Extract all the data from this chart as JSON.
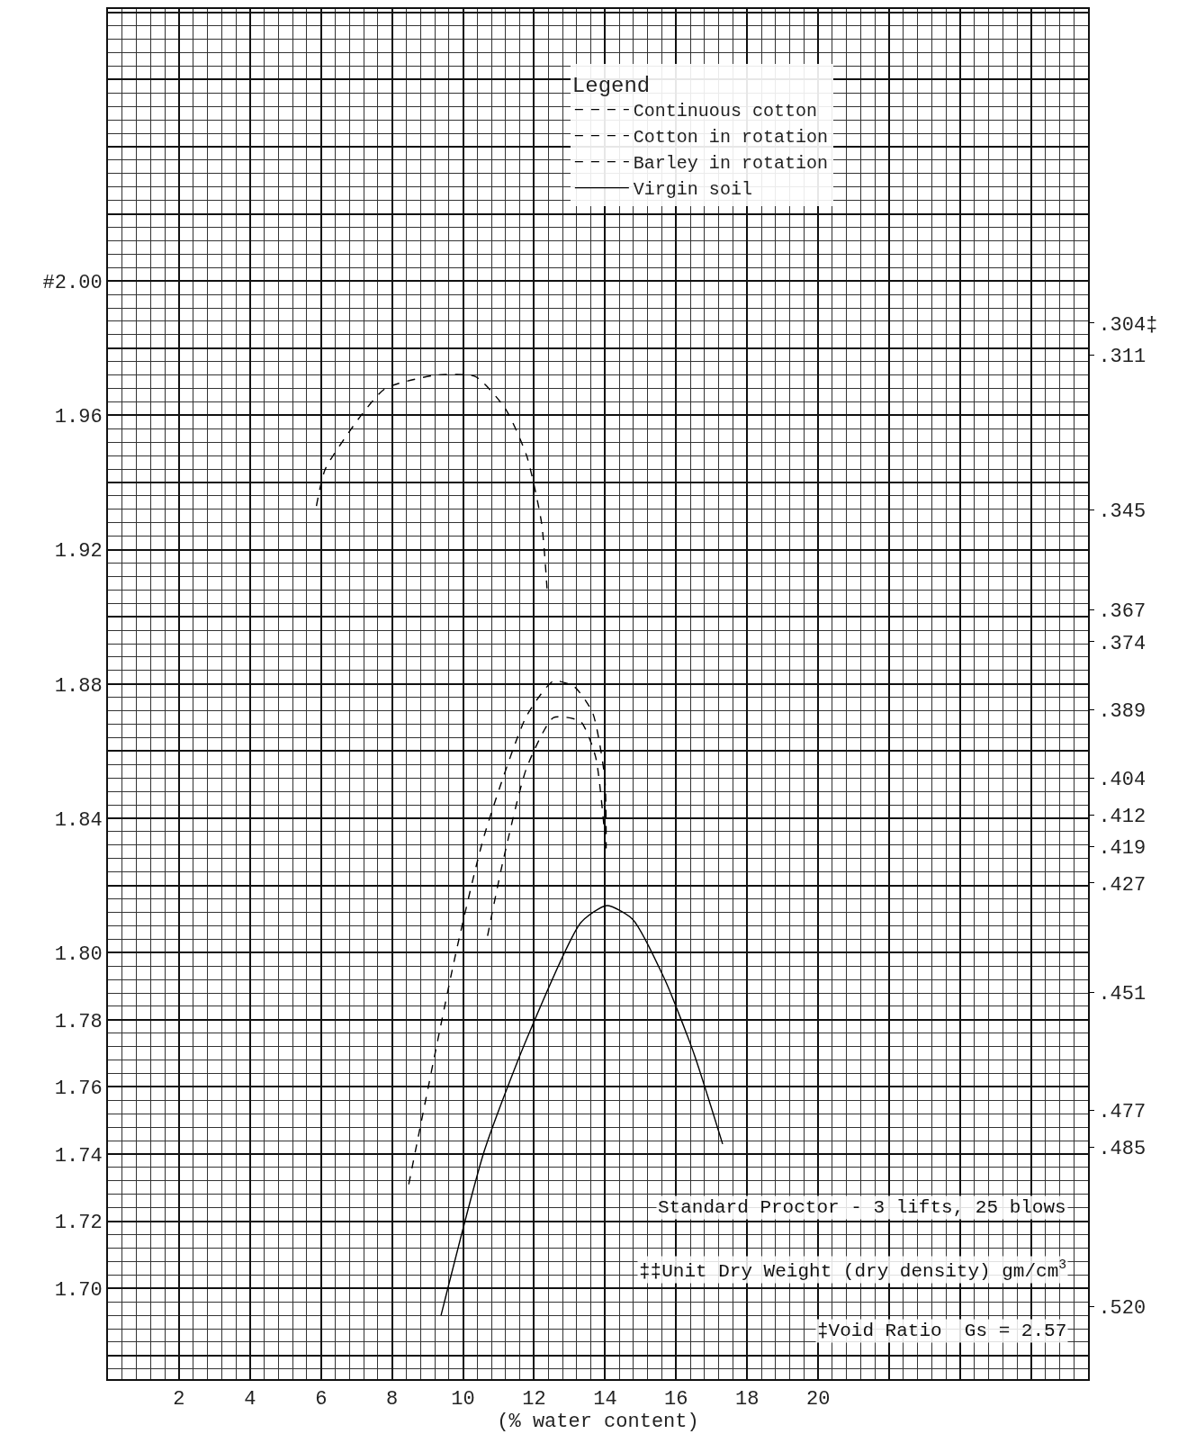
{
  "chart_data": {
    "type": "line",
    "xlabel": "(% water content)",
    "legend_title": "Legend",
    "legend": "top right",
    "grid": true,
    "marker": "none",
    "xlim": [
      0,
      27.6
    ],
    "xticks": [
      2,
      4,
      6,
      8,
      10,
      12,
      14,
      16,
      18,
      20,
      {
        "value": 22,
        "label": null
      },
      {
        "value": 24,
        "label": null
      },
      {
        "value": 26,
        "label": null
      }
    ],
    "ylim": [
      1.673,
      2.081
    ],
    "yticks": [
      {
        "value": 1.68,
        "label": null
      },
      {
        "value": 1.7,
        "label": "1.70"
      },
      1.72,
      1.74,
      1.76,
      1.78,
      {
        "value": 1.8,
        "label": "1.80"
      },
      {
        "value": 1.82,
        "label": null
      },
      1.84,
      {
        "value": 1.86,
        "label": null
      },
      1.88,
      {
        "value": 1.9,
        "label": null
      },
      1.92,
      {
        "value": 1.94,
        "label": null
      },
      1.96,
      {
        "value": 1.98,
        "label": null
      },
      {
        "value": 2.0,
        "label": "#2.00"
      },
      {
        "value": 2.02,
        "label": null
      },
      {
        "value": 2.04,
        "label": null
      },
      {
        "value": 2.06,
        "label": null
      },
      {
        "value": 2.08,
        "label": null
      }
    ],
    "annotations": [
      "Standard Proctor - 3 lifts, 25 blows",
      "‡‡Unit Dry Weight (dry density) gm/cm$^{3}$",
      "‡Void Ratio  Gs = 2.57"
    ],
    "y2lim": [
      0.536,
      0.235
    ],
    "y2ticks": [
      {
        "value": 0.304,
        "label": ".304‡"
      },
      {
        "value": 0.311,
        "label": ".311"
      },
      {
        "value": 0.345,
        "label": ".345"
      },
      {
        "value": 0.367,
        "label": ".367"
      },
      {
        "value": 0.374,
        "label": ".374"
      },
      {
        "value": 0.389,
        "label": ".389"
      },
      {
        "value": 0.404,
        "label": ".404"
      },
      {
        "value": 0.412,
        "label": ".412"
      },
      {
        "value": 0.419,
        "label": ".419"
      },
      {
        "value": 0.427,
        "label": ".427"
      },
      {
        "value": 0.451,
        "label": ".451"
      },
      {
        "value": 0.477,
        "label": ".477"
      },
      {
        "value": 0.485,
        "label": ".485"
      },
      {
        "value": 0.52,
        "label": ".520"
      }
    ],
    "series": [
      {
        "name": "Continuous cotton",
        "color": "#000000",
        "line_style": "dashed",
        "x": [
          8.47,
          9.8,
          10.6,
          11.79,
          12.55,
          13.14,
          13.65,
          13.99,
          14.03
        ],
        "values": [
          1.731,
          1.8,
          1.835,
          1.8705,
          1.8809,
          1.8791,
          1.8714,
          1.852,
          1.831
        ]
      },
      {
        "name": "Cotton in rotation",
        "color": "#000000",
        "line_style": "dashed",
        "x": [
          10.69,
          11.11,
          11.79,
          12.55,
          13.31,
          13.73,
          13.99
        ],
        "values": [
          1.805,
          1.8265,
          1.855,
          1.87,
          1.8688,
          1.8584,
          1.835
        ]
      },
      {
        "name": "Barley in rotation",
        "color": "#000000",
        "line_style": "dashed",
        "x": [
          5.87,
          6.12,
          7.13,
          7.81,
          9.25,
          10.35,
          11.19,
          11.79,
          12.21,
          12.38
        ],
        "values": [
          1.933,
          1.944,
          1.96,
          1.968,
          1.972,
          1.9715,
          1.962,
          1.948,
          1.928,
          1.906
        ]
      },
      {
        "name": "Virgin soil",
        "color": "#000000",
        "line_style": "solid",
        "x": [
          9.38,
          10.6,
          11.78,
          13.32,
          14.05,
          14.77,
          15.68,
          16.5,
          17.31
        ],
        "values": [
          1.692,
          1.741,
          1.774,
          1.809,
          1.814,
          1.81,
          1.792,
          1.77,
          1.743
        ]
      }
    ]
  }
}
